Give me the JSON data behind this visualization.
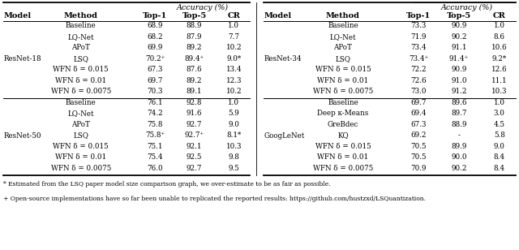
{
  "footnote_star": "* Estimated from the LSQ paper model size comparison graph, we over-estimate to be as fair as possible.",
  "footnote_plus": "+ Open-source implementations have so far been unable to replicated the reported results: https://github.com/hustzxd/LSQuantization.",
  "left_table": {
    "sections": [
      {
        "model": "ResNet-18",
        "rows": [
          [
            "Baseline",
            "68.9",
            "88.9",
            "1.0"
          ],
          [
            "LQ-Net",
            "68.2",
            "87.9",
            "7.7"
          ],
          [
            "APoT",
            "69.9",
            "89.2",
            "10.2"
          ],
          [
            "LSQ",
            "70.2⁺",
            "89.4⁺",
            "9.0*"
          ],
          [
            "WFN δ = 0.015",
            "67.3",
            "87.6",
            "13.4"
          ],
          [
            "WFN δ = 0.01",
            "69.7",
            "89.2",
            "12.3"
          ],
          [
            "WFN δ = 0.0075",
            "70.3",
            "89.1",
            "10.2"
          ]
        ]
      },
      {
        "model": "ResNet-50",
        "rows": [
          [
            "Baseline",
            "76.1",
            "92.8",
            "1.0"
          ],
          [
            "LQ-Net",
            "74.2",
            "91.6",
            "5.9"
          ],
          [
            "APoT",
            "75.8",
            "92.7",
            "9.0"
          ],
          [
            "LSQ",
            "75.8⁺",
            "92.7⁺",
            "8.1*"
          ],
          [
            "WFN δ = 0.015",
            "75.1",
            "92.1",
            "10.3"
          ],
          [
            "WFN δ = 0.01",
            "75.4",
            "92.5",
            "9.8"
          ],
          [
            "WFN δ = 0.0075",
            "76.0",
            "92.7",
            "9.5"
          ]
        ]
      }
    ]
  },
  "right_table": {
    "sections": [
      {
        "model": "ResNet-34",
        "rows": [
          [
            "Baseline",
            "73.3",
            "90.9",
            "1.0"
          ],
          [
            "LQ-Net",
            "71.9",
            "90.2",
            "8.6"
          ],
          [
            "APoT",
            "73.4",
            "91.1",
            "10.6"
          ],
          [
            "LSQ",
            "73.4⁺",
            "91.4⁺",
            "9.2*"
          ],
          [
            "WFN δ = 0.015",
            "72.2",
            "90.9",
            "12.6"
          ],
          [
            "WFN δ = 0.01",
            "72.6",
            "91.0",
            "11.1"
          ],
          [
            "WFN δ = 0.0075",
            "73.0",
            "91.2",
            "10.3"
          ]
        ]
      },
      {
        "model": "GoogLeNet",
        "rows": [
          [
            "Baseline",
            "69.7",
            "89.6",
            "1.0"
          ],
          [
            "Deep κ-Means",
            "69.4",
            "89.7",
            "3.0"
          ],
          [
            "GreBdec",
            "67.3",
            "88.9",
            "4.5"
          ],
          [
            "KQ",
            "69.2",
            "-",
            "5.8"
          ],
          [
            "WFN δ = 0.015",
            "70.5",
            "89.9",
            "9.0"
          ],
          [
            "WFN δ = 0.01",
            "70.5",
            "90.0",
            "8.4"
          ],
          [
            "WFN δ = 0.0075",
            "70.9",
            "90.2",
            "8.4"
          ]
        ]
      }
    ]
  }
}
